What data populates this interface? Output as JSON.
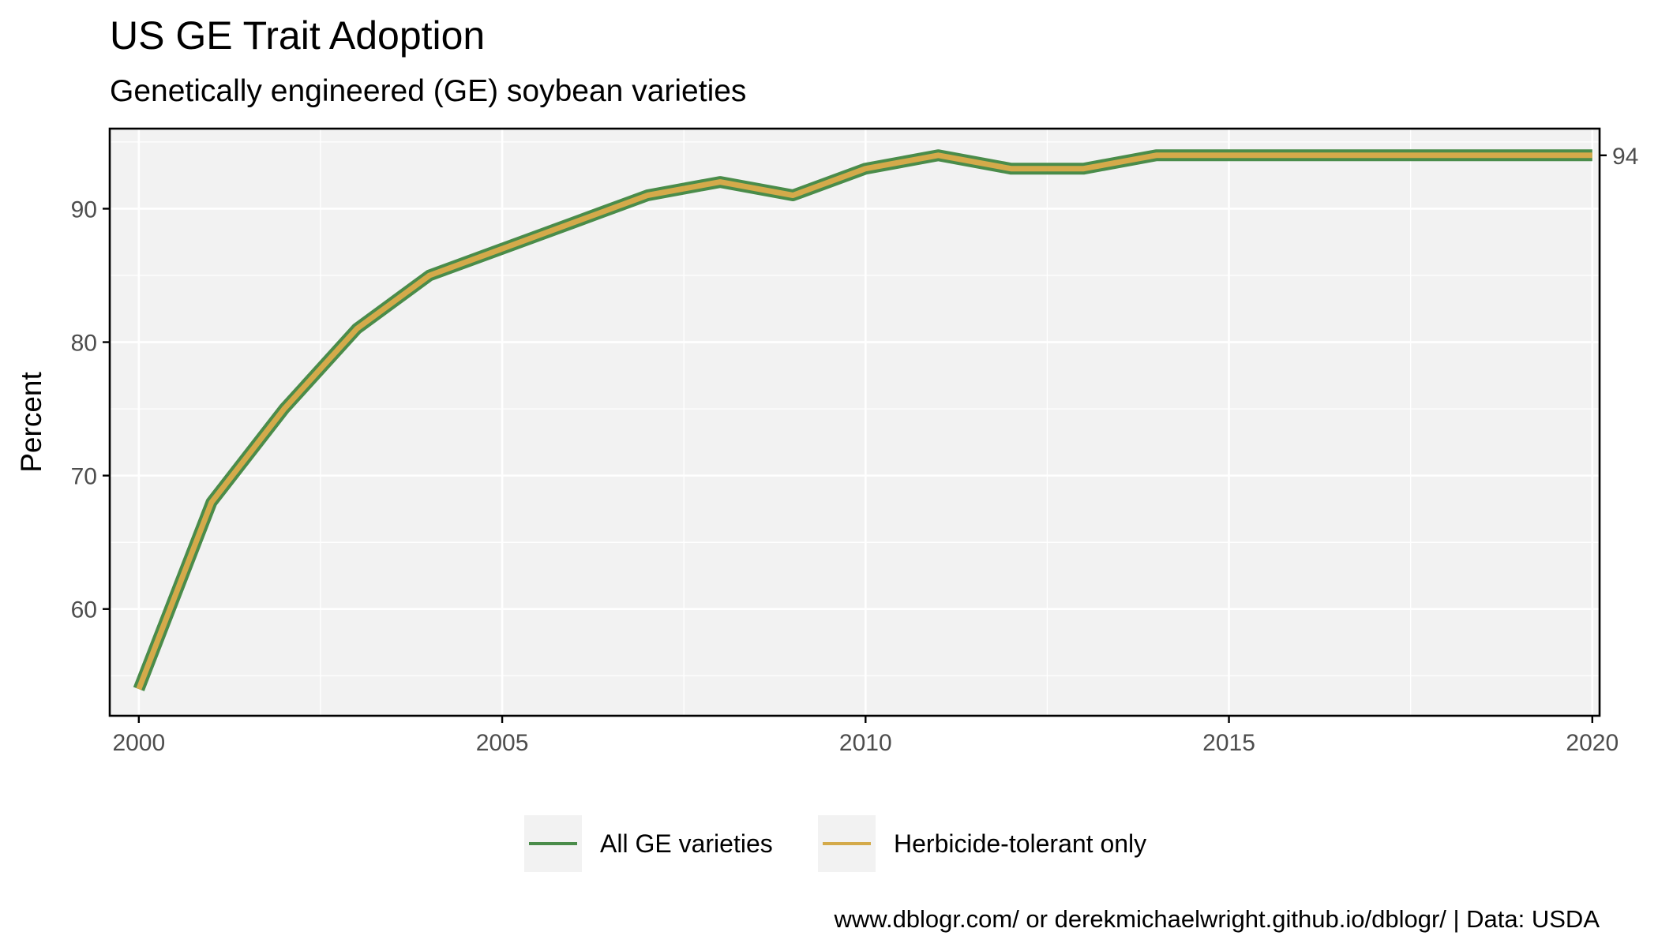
{
  "chart_data": {
    "type": "line",
    "title": "US GE Trait Adoption",
    "subtitle": "Genetically engineered (GE) soybean varieties",
    "xlabel": "",
    "ylabel": "Percent",
    "xlim": [
      1999.6,
      2020.1
    ],
    "ylim": [
      52,
      96
    ],
    "x_ticks": [
      2000,
      2005,
      2010,
      2015,
      2020
    ],
    "x_tick_labels": [
      "2000",
      "2005",
      "2010",
      "2015",
      "2020"
    ],
    "y_ticks": [
      60,
      70,
      80,
      90
    ],
    "y_tick_labels": [
      "60",
      "70",
      "80",
      "90"
    ],
    "secondary_y_ticks": [
      94
    ],
    "secondary_y_tick_labels": [
      "94"
    ],
    "grid": true,
    "legend_position": "bottom",
    "x": [
      2000,
      2001,
      2002,
      2003,
      2004,
      2005,
      2006,
      2007,
      2008,
      2009,
      2010,
      2011,
      2012,
      2013,
      2014,
      2015,
      2016,
      2017,
      2018,
      2019,
      2020
    ],
    "series": [
      {
        "name": "All GE varieties",
        "color": "#4a8c4a",
        "values": [
          54,
          68,
          75,
          81,
          85,
          87,
          89,
          91,
          92,
          91,
          93,
          94,
          93,
          93,
          94,
          94,
          94,
          94,
          94,
          94,
          94
        ]
      },
      {
        "name": "Herbicide-tolerant only",
        "color": "#d4aa4a",
        "values": [
          54,
          68,
          75,
          81,
          85,
          87,
          89,
          91,
          92,
          91,
          93,
          94,
          93,
          93,
          94,
          94,
          94,
          94,
          94,
          94,
          94
        ]
      }
    ],
    "caption": "www.dblogr.com/ or derekmichaelwright.github.io/dblogr/ | Data: USDA"
  },
  "colors": {
    "panel_background": "#f2f2f2",
    "grid": "#ffffff",
    "axis": "#000000",
    "tick_text": "#4d4d4d",
    "legend_key_background": "#f2f2f2"
  }
}
